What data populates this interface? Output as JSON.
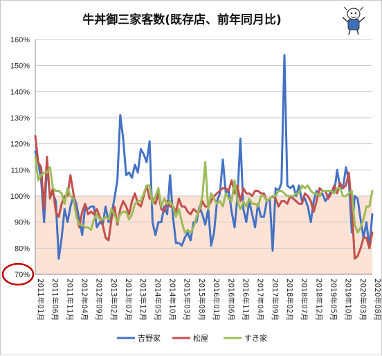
{
  "chart_data": {
    "type": "line",
    "title": "牛丼御三家客数(既存店、前年同月比)",
    "xlabel": "",
    "ylabel": "",
    "ylim": [
      70,
      160
    ],
    "yticks": [
      "70%",
      "80%",
      "90%",
      "100%",
      "110%",
      "120%",
      "130%",
      "140%",
      "150%",
      "160%"
    ],
    "shaded_band": {
      "from": 70,
      "to": 100,
      "color": "#fde3d6"
    },
    "highlight_tick": "70%",
    "highlight_color": "#c00000",
    "grid": true,
    "legend_position": "bottom",
    "x_tick_labels": [
      "2011年01月",
      "2011年06月",
      "2011年11月",
      "2012年04月",
      "2012年09月",
      "2013年02月",
      "2013年07月",
      "2013年12月",
      "2014年05月",
      "2014年10月",
      "2015年03月",
      "2015年08月",
      "2016年01月",
      "2016年06月",
      "2016年11月",
      "2017年04月",
      "2017年09月",
      "2018年02月",
      "2018年07月",
      "2018年12月",
      "2019年05月",
      "2019年10月",
      "2020年03月",
      "2020年08月"
    ],
    "series": [
      {
        "name": "吉野家",
        "color": "#4472c4",
        "values": [
          117,
          113,
          106,
          90,
          112,
          100,
          101,
          98,
          76,
          84,
          95,
          90,
          96,
          100,
          97,
          91,
          85,
          96,
          95,
          96,
          96,
          88,
          90,
          89,
          96,
          90,
          93,
          99,
          106,
          131,
          122,
          108,
          109,
          107,
          112,
          109,
          118,
          116,
          113,
          121,
          90,
          85,
          90,
          90,
          96,
          93,
          108,
          92,
          82,
          82,
          81,
          84,
          86,
          83,
          90,
          90,
          96,
          93,
          89,
          95,
          81,
          86,
          98,
          101,
          114,
          101,
          102,
          94,
          88,
          100,
          122,
          95,
          90,
          98,
          93,
          88,
          97,
          92,
          92,
          98,
          99,
          79,
          103,
          102,
          105,
          154,
          104,
          103,
          104,
          100,
          104,
          98,
          99,
          96,
          90,
          98,
          102,
          100,
          101,
          98,
          100,
          102,
          101,
          110,
          103,
          103,
          111,
          106,
          86,
          100,
          99,
          91,
          84,
          90,
          80,
          93
        ]
      },
      {
        "name": "松屋",
        "color": "#c0504d",
        "values": [
          123,
          113,
          111,
          95,
          115,
          99,
          103,
          94,
          92,
          97,
          100,
          100,
          108,
          101,
          93,
          88,
          94,
          97,
          93,
          94,
          93,
          95,
          92,
          89,
          84,
          83,
          91,
          96,
          89,
          95,
          98,
          96,
          93,
          98,
          101,
          97,
          96,
          100,
          104,
          99,
          99,
          97,
          101,
          95,
          94,
          98,
          96,
          96,
          94,
          99,
          96,
          96,
          94,
          93,
          95,
          94,
          94,
          98,
          96,
          96,
          98,
          100,
          101,
          102,
          103,
          103,
          102,
          106,
          101,
          104,
          98,
          103,
          101,
          101,
          100,
          102,
          102,
          101,
          101,
          98,
          99,
          100,
          99,
          96,
          98,
          98,
          97,
          100,
          99,
          98,
          97,
          97,
          101,
          100,
          98,
          94,
          98,
          103,
          102,
          102,
          99,
          101,
          104,
          101,
          105,
          103,
          104,
          109,
          95,
          76,
          77,
          80,
          84,
          84,
          80,
          86
        ]
      },
      {
        "name": "すき家",
        "color": "#9bbb59",
        "values": [
          115,
          106,
          108,
          109,
          109,
          111,
          103,
          102,
          102,
          101,
          97,
          103,
          100,
          99,
          92,
          89,
          89,
          88,
          88,
          87,
          91,
          93,
          91,
          91,
          92,
          91,
          95,
          93,
          90,
          93,
          94,
          94,
          91,
          93,
          97,
          98,
          98,
          101,
          104,
          104,
          97,
          100,
          103,
          96,
          99,
          97,
          98,
          96,
          92,
          95,
          90,
          86,
          87,
          86,
          88,
          92,
          95,
          100,
          113,
          95,
          101,
          99,
          97,
          98,
          96,
          101,
          99,
          98,
          106,
          98,
          95,
          98,
          96,
          99,
          97,
          97,
          96,
          100,
          100,
          98,
          99,
          100,
          100,
          102,
          102,
          101,
          100,
          100,
          100,
          101,
          101,
          104,
          103,
          104,
          102,
          101,
          101,
          100,
          102,
          102,
          102,
          102,
          101,
          103,
          103,
          100,
          100,
          101,
          102,
          89,
          86,
          88,
          91,
          96,
          96,
          102
        ]
      }
    ]
  }
}
